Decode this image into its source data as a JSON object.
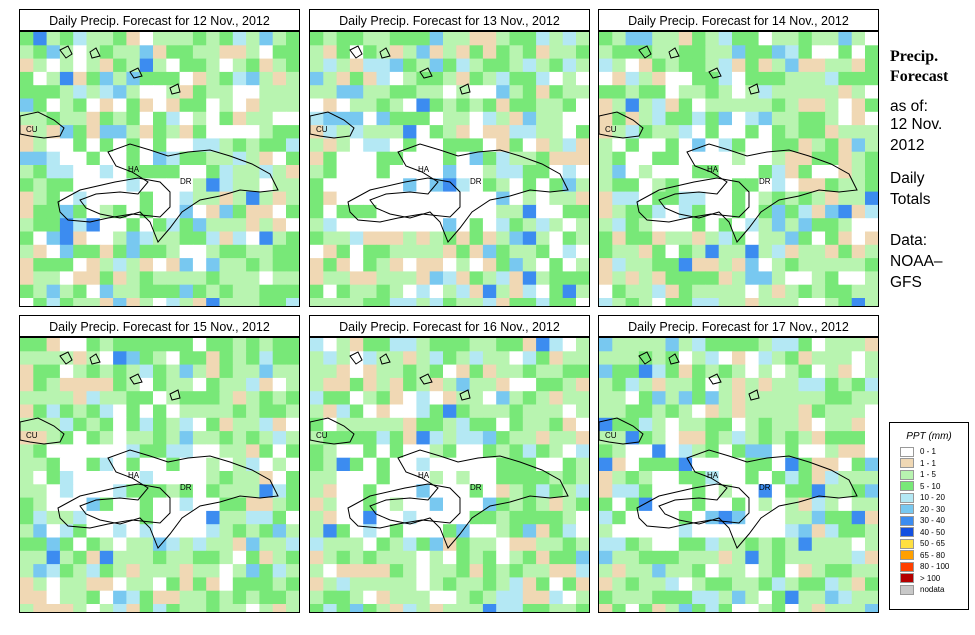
{
  "panels": [
    {
      "title": "Daily Precip. Forecast for  12 Nov., 2012",
      "bias": 0
    },
    {
      "title": "Daily Precip. Forecast for  13 Nov., 2012",
      "bias": 1
    },
    {
      "title": "Daily Precip. Forecast for  14 Nov., 2012",
      "bias": 2
    },
    {
      "title": "Daily Precip. Forecast for  15 Nov., 2012",
      "bias": 3
    },
    {
      "title": "Daily Precip. Forecast for  16 Nov., 2012",
      "bias": 4
    },
    {
      "title": "Daily Precip. Forecast for  17 Nov., 2012",
      "bias": 5
    }
  ],
  "map_labels": {
    "cu": "CU",
    "ha": "HA",
    "dr": "DR"
  },
  "sidebar": {
    "title_line1": "Precip.",
    "title_line2": "Forecast",
    "asof": "as of:",
    "date_line1": "12 Nov.",
    "date_line2": "2012",
    "totals_line1": "Daily",
    "totals_line2": "Totals",
    "data_line1": "Data:",
    "data_line2": "NOAA–",
    "data_line3": "GFS"
  },
  "legend": {
    "title": "PPT (mm)",
    "items": [
      {
        "label": "0 - 1",
        "color": "#ffffff"
      },
      {
        "label": "1 - 1",
        "color": "#f0d8b4"
      },
      {
        "label": "1 - 5",
        "color": "#b8f4b0"
      },
      {
        "label": "5 - 10",
        "color": "#78e878"
      },
      {
        "label": "10 - 20",
        "color": "#b4e8f4"
      },
      {
        "label": "20 - 30",
        "color": "#78c8f0"
      },
      {
        "label": "30 - 40",
        "color": "#3c8cf0"
      },
      {
        "label": "40 - 50",
        "color": "#1450e0"
      },
      {
        "label": "50 - 65",
        "color": "#ffe040"
      },
      {
        "label": "65 - 80",
        "color": "#ffa000"
      },
      {
        "label": "80 - 100",
        "color": "#ff4000"
      },
      {
        "label": "> 100",
        "color": "#b40000"
      },
      {
        "label": "nodata",
        "color": "#c8c8c8"
      }
    ]
  }
}
